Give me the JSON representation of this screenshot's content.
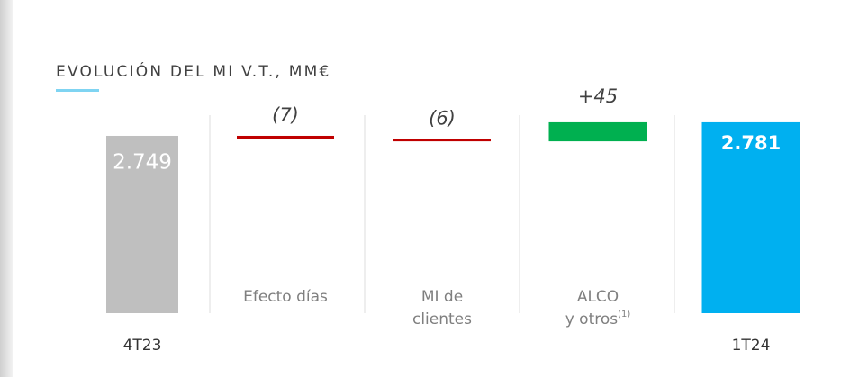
{
  "chart_data": {
    "type": "waterfall",
    "title": "EVOLUCIÓN DEL MI V.T., MM€",
    "categories": [
      [
        "4T23"
      ],
      [
        "Efecto días"
      ],
      [
        "MI de",
        "clientes"
      ],
      [
        "ALCO",
        "y otros"
      ],
      [
        "1T24"
      ]
    ],
    "category_notes": [
      null,
      null,
      null,
      "(1)",
      null
    ],
    "measure": [
      "absolute",
      "relative",
      "relative",
      "relative",
      "total"
    ],
    "values": [
      2749,
      -7,
      -6,
      45,
      2781
    ],
    "value_labels": [
      "2.749",
      "(7)",
      "(6)",
      "+45",
      "2.781"
    ],
    "colors": [
      "#bfbfbf",
      "#c00000",
      "#c00000",
      "#00b050",
      "#00b0f0"
    ],
    "ylim": [
      2330,
      2800
    ]
  }
}
